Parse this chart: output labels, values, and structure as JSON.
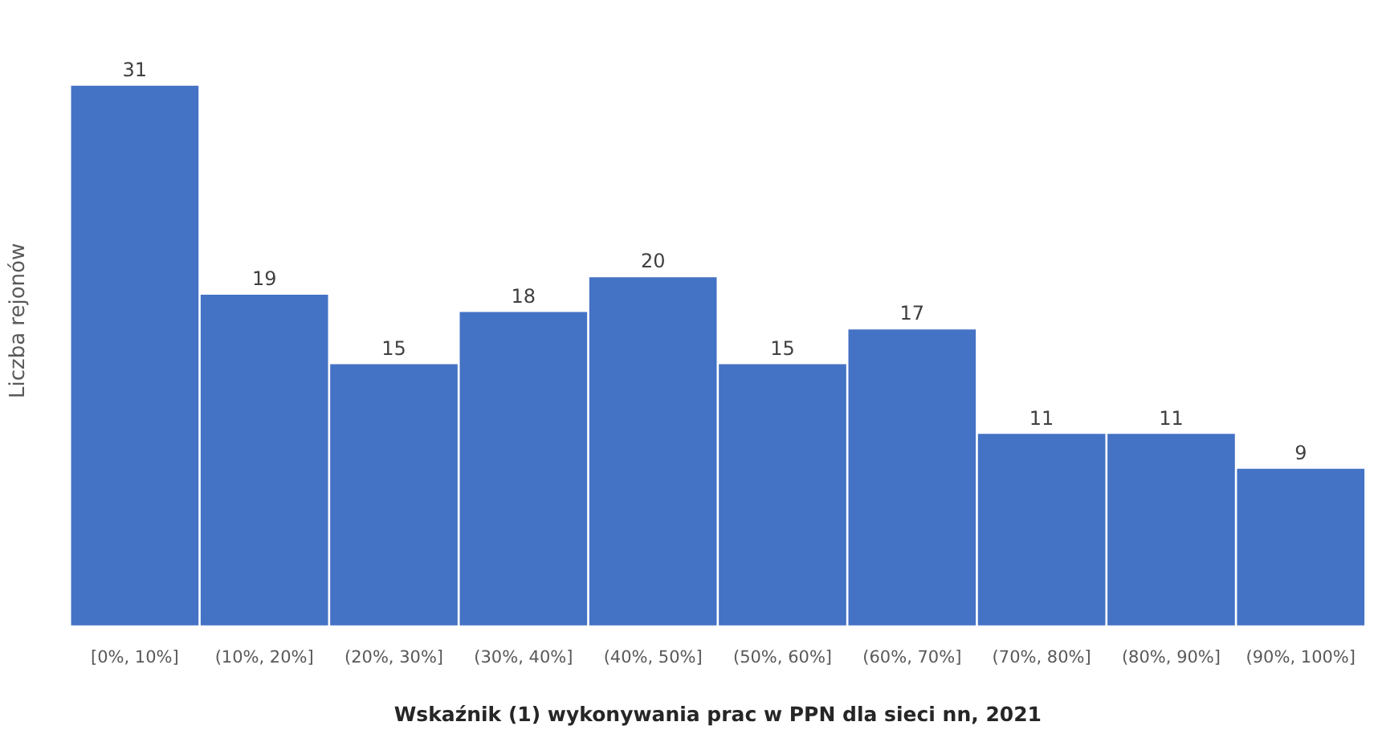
{
  "chart_data": {
    "type": "bar",
    "xlabel": "Wskaźnik (1) wykonywania prac w PPN dla sieci nn, 2021",
    "ylabel": "Liczba rejonów",
    "categories": [
      "[0%, 10%]",
      "(10%, 20%]",
      "(20%, 30%]",
      "(30%, 40%]",
      "(40%, 50%]",
      "(50%, 60%]",
      "(60%, 70%]",
      "(70%, 80%]",
      "(80%, 90%]",
      "(90%, 100%]"
    ],
    "values": [
      31,
      19,
      15,
      18,
      20,
      15,
      17,
      11,
      11,
      9
    ],
    "color": "#4472c4",
    "data_labels": true,
    "grid": false,
    "legend": false,
    "tick_labels": "x"
  }
}
